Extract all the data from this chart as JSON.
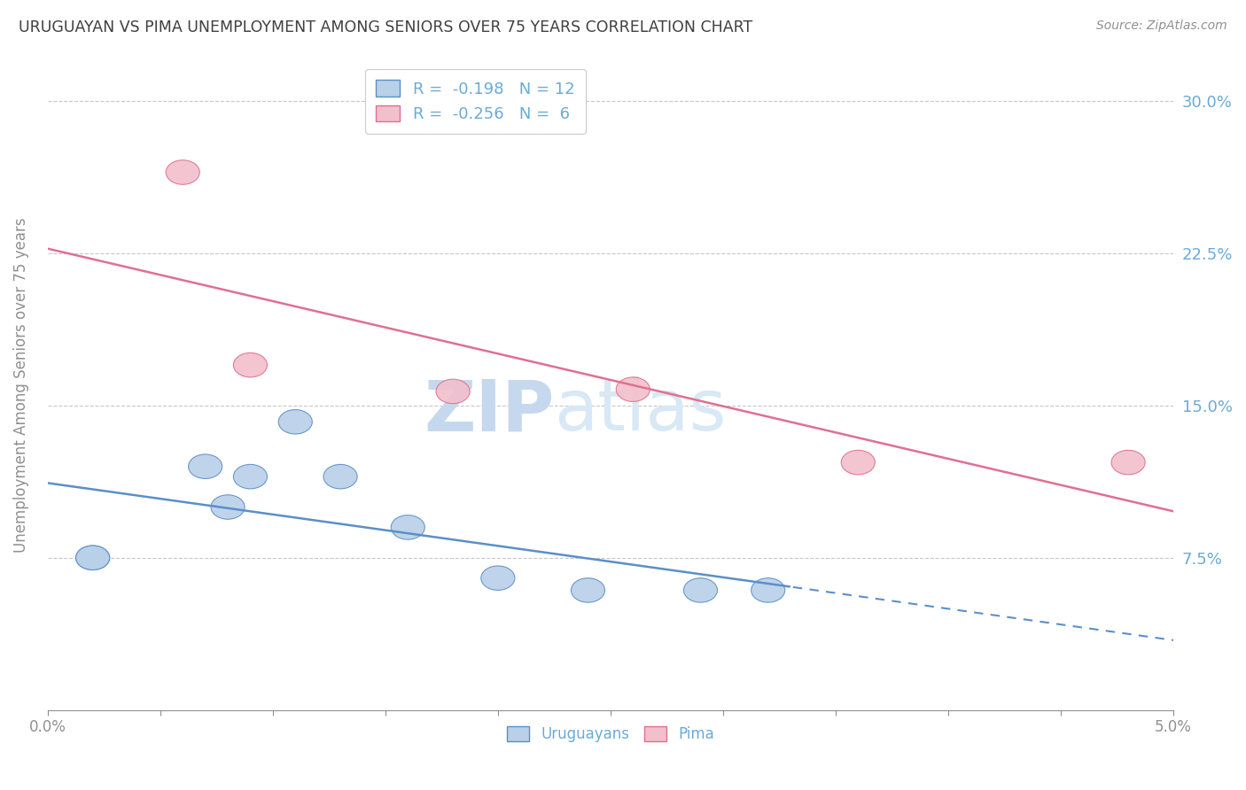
{
  "title": "URUGUAYAN VS PIMA UNEMPLOYMENT AMONG SENIORS OVER 75 YEARS CORRELATION CHART",
  "source": "Source: ZipAtlas.com",
  "ylabel": "Unemployment Among Seniors over 75 years",
  "xlim": [
    0.0,
    0.05
  ],
  "ylim": [
    0.0,
    0.32
  ],
  "xtick_positions": [
    0.0,
    0.005,
    0.01,
    0.015,
    0.02,
    0.025,
    0.03,
    0.035,
    0.04,
    0.045,
    0.05
  ],
  "xtick_labels_shown": {
    "0.0": "0.0%",
    "0.05": "5.0%"
  },
  "ytick_positions": [
    0.0,
    0.075,
    0.15,
    0.225,
    0.3
  ],
  "ytick_labels_right": [
    "",
    "7.5%",
    "15.0%",
    "22.5%",
    "30.0%"
  ],
  "uruguayan_x": [
    0.002,
    0.002,
    0.007,
    0.008,
    0.009,
    0.011,
    0.013,
    0.016,
    0.02,
    0.024,
    0.029,
    0.032
  ],
  "uruguayan_y": [
    0.075,
    0.075,
    0.12,
    0.1,
    0.115,
    0.142,
    0.115,
    0.09,
    0.065,
    0.059,
    0.059,
    0.059
  ],
  "pima_x": [
    0.006,
    0.009,
    0.018,
    0.026,
    0.036,
    0.048
  ],
  "pima_y": [
    0.265,
    0.17,
    0.157,
    0.158,
    0.122,
    0.122
  ],
  "uruguayan_R": -0.198,
  "uruguayan_N": 12,
  "pima_R": -0.256,
  "pima_N": 6,
  "uruguayan_color": "#b8d0e8",
  "pima_color": "#f2bfcc",
  "uruguayan_line_color": "#5b8fc9",
  "pima_line_color": "#e07090",
  "legend_uruguayan_label": "Uruguayans",
  "legend_pima_label": "Pima",
  "background_color": "#ffffff",
  "watermark_text": "ZIPatlas",
  "watermark_color": "#dce8f5",
  "title_color": "#404040",
  "axis_color": "#909090",
  "grid_color": "#c8c8c8",
  "right_tick_color": "#6baad8"
}
